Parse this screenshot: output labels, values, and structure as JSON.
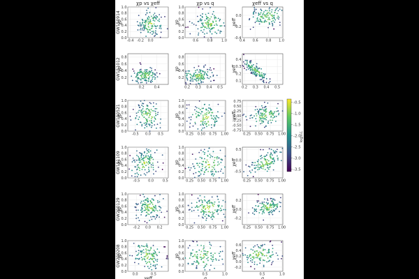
{
  "chart_data": {
    "type": "scatter",
    "title": "",
    "columns": [
      {
        "title": "χp vs χeff",
        "x_quantity": "chi_eff",
        "y_quantity": "chi_p"
      },
      {
        "title": "χp vs q",
        "x_quantity": "q",
        "y_quantity": "chi_p"
      },
      {
        "title": "χeff vs q",
        "x_quantity": "q",
        "y_quantity": "chi_eff"
      }
    ],
    "rows": [
      {
        "event": "GW150914",
        "panels": [
          {
            "xlabel": "",
            "ylabel": "χp",
            "xlim": [
              -0.45,
              0.35
            ],
            "ylim": [
              0.0,
              1.0
            ],
            "xticks": [
              "-0.4",
              "-0.2",
              "0.0"
            ],
            "yticks": [
              "0.0",
              "0.2",
              "0.4",
              "0.6",
              "0.8",
              "1.0"
            ],
            "cloud": {
              "cx": 0.0,
              "cy": 0.45,
              "sx": 0.12,
              "sy": 0.22,
              "rho": 0.0
            }
          },
          {
            "xlabel": "",
            "ylabel": "χp",
            "xlim": [
              0.45,
              1.02
            ],
            "ylim": [
              0.0,
              1.0
            ],
            "xticks": [
              "0.6",
              "0.8",
              "1.0"
            ],
            "yticks": [
              "0.0",
              "0.2",
              "0.4",
              "0.6",
              "0.8",
              "1.0"
            ],
            "cloud": {
              "cx": 0.8,
              "cy": 0.45,
              "sx": 0.12,
              "sy": 0.22,
              "rho": 0.0
            }
          },
          {
            "xlabel": "",
            "ylabel": "χeff",
            "xlim": [
              0.4,
              1.02
            ],
            "ylim": [
              -0.4,
              0.15
            ],
            "xticks": [
              "0.4",
              "0.6",
              "0.8",
              "1.0"
            ],
            "yticks": [
              "-0.4",
              "-0.2",
              "0.0"
            ],
            "cloud": {
              "cx": 0.78,
              "cy": -0.02,
              "sx": 0.13,
              "sy": 0.1,
              "rho": 0.1
            }
          }
        ]
      },
      {
        "event": "GW151012",
        "panels": [
          {
            "xlabel": "",
            "ylabel": "χp",
            "xlim": [
              0.02,
              0.55
            ],
            "ylim": [
              0.0,
              0.9
            ],
            "xticks": [
              "0.2",
              "0.4"
            ],
            "yticks": [
              "0.2",
              "0.4",
              "0.6",
              "0.8"
            ],
            "cloud": {
              "cx": 0.25,
              "cy": 0.25,
              "sx": 0.09,
              "sy": 0.12,
              "rho": 0.0
            }
          },
          {
            "xlabel": "",
            "ylabel": "χp",
            "xlim": [
              0.18,
              0.55
            ],
            "ylim": [
              0.0,
              0.9
            ],
            "xticks": [
              "0.2",
              "0.3",
              "0.4",
              "0.5"
            ],
            "yticks": [
              "0.2",
              "0.4",
              "0.6",
              "0.8"
            ],
            "cloud": {
              "cx": 0.3,
              "cy": 0.25,
              "sx": 0.07,
              "sy": 0.13,
              "rho": 0.0
            }
          },
          {
            "xlabel": "",
            "ylabel": "χeff",
            "xlim": [
              0.18,
              0.55
            ],
            "ylim": [
              0.05,
              0.48
            ],
            "xticks": [
              "0.2",
              "0.3",
              "0.4",
              "0.5"
            ],
            "yticks": [
              "0.1",
              "0.2",
              "0.3",
              "0.4"
            ],
            "cloud": {
              "cx": 0.3,
              "cy": 0.25,
              "sx": 0.06,
              "sy": 0.08,
              "rho": -0.85
            }
          }
        ]
      },
      {
        "event": "GW190521",
        "panels": [
          {
            "xlabel": "",
            "ylabel": "χp",
            "xlim": [
              -0.8,
              0.8
            ],
            "ylim": [
              0.0,
              1.0
            ],
            "xticks": [
              "-0.5",
              "0.0",
              "0.5"
            ],
            "yticks": [
              "0.0",
              "0.2",
              "0.4",
              "0.6",
              "0.8",
              "1.0"
            ],
            "cloud": {
              "cx": 0.0,
              "cy": 0.5,
              "sx": 0.3,
              "sy": 0.25,
              "rho": 0.0
            }
          },
          {
            "xlabel": "",
            "ylabel": "χp",
            "xlim": [
              0.15,
              1.02
            ],
            "ylim": [
              0.0,
              1.0
            ],
            "xticks": [
              "0.25",
              "0.50",
              "0.75",
              "1.00"
            ],
            "yticks": [
              "0.0",
              "0.2",
              "0.4",
              "0.6",
              "0.8",
              "1.0"
            ],
            "cloud": {
              "cx": 0.6,
              "cy": 0.45,
              "sx": 0.2,
              "sy": 0.25,
              "rho": 0.0
            }
          },
          {
            "xlabel": "",
            "ylabel": "χeff",
            "xlim": [
              0.15,
              1.02
            ],
            "ylim": [
              -0.8,
              0.8
            ],
            "xticks": [
              "0.25",
              "0.50",
              "0.75",
              "1.00"
            ],
            "yticks": [
              "-0.75",
              "-0.50",
              "-0.25",
              "0.00",
              "0.25",
              "0.50",
              "0.75"
            ],
            "cloud": {
              "cx": 0.65,
              "cy": 0.0,
              "sx": 0.2,
              "sy": 0.28,
              "rho": 0.3
            }
          }
        ]
      },
      {
        "event": "GW191109",
        "panels": [
          {
            "xlabel": "",
            "ylabel": "χp",
            "xlim": [
              -0.8,
              0.6
            ],
            "ylim": [
              0.0,
              1.0
            ],
            "xticks": [
              "-0.5",
              "0.0",
              "0.5"
            ],
            "yticks": [
              "0.0",
              "0.2",
              "0.4",
              "0.6",
              "0.8",
              "1.0"
            ],
            "cloud": {
              "cx": -0.2,
              "cy": 0.5,
              "sx": 0.25,
              "sy": 0.25,
              "rho": 0.3
            }
          },
          {
            "xlabel": "",
            "ylabel": "χp",
            "xlim": [
              0.15,
              1.02
            ],
            "ylim": [
              0.0,
              1.0
            ],
            "xticks": [
              "0.25",
              "0.50",
              "0.75",
              "1.00"
            ],
            "yticks": [
              "0.0",
              "0.2",
              "0.4",
              "0.6",
              "0.8",
              "1.0"
            ],
            "cloud": {
              "cx": 0.65,
              "cy": 0.45,
              "sx": 0.2,
              "sy": 0.25,
              "rho": 0.1
            }
          },
          {
            "xlabel": "",
            "ylabel": "χeff",
            "xlim": [
              0.15,
              1.02
            ],
            "ylim": [
              -0.8,
              0.6
            ],
            "xticks": [
              "0.25",
              "0.50",
              "0.75",
              "1.00"
            ],
            "yticks": [
              "-0.5",
              "0.0",
              "0.5"
            ],
            "cloud": {
              "cx": 0.65,
              "cy": -0.1,
              "sx": 0.2,
              "sy": 0.3,
              "rho": 0.6
            }
          }
        ]
      },
      {
        "event": "GW200129",
        "panels": [
          {
            "xlabel": "",
            "ylabel": "χp",
            "xlim": [
              -0.35,
              0.35
            ],
            "ylim": [
              0.0,
              1.0
            ],
            "xticks": [
              "-0.2",
              "0.0",
              "0.2"
            ],
            "yticks": [
              "0.0",
              "0.2",
              "0.4",
              "0.6",
              "0.8",
              "1.0"
            ],
            "cloud": {
              "cx": 0.02,
              "cy": 0.55,
              "sx": 0.12,
              "sy": 0.22,
              "rho": 0.0
            }
          },
          {
            "xlabel": "",
            "ylabel": "χp",
            "xlim": [
              0.15,
              1.02
            ],
            "ylim": [
              0.0,
              1.0
            ],
            "xticks": [
              "0.25",
              "0.50",
              "0.75",
              "1.00"
            ],
            "yticks": [
              "0.0",
              "0.2",
              "0.4",
              "0.6",
              "0.8",
              "1.0"
            ],
            "cloud": {
              "cx": 0.65,
              "cy": 0.55,
              "sx": 0.2,
              "sy": 0.22,
              "rho": 0.0
            }
          },
          {
            "xlabel": "",
            "ylabel": "χeff",
            "xlim": [
              0.15,
              1.02
            ],
            "ylim": [
              -0.35,
              0.35
            ],
            "xticks": [
              "0.25",
              "0.50",
              "0.75",
              "1.00"
            ],
            "yticks": [
              "-0.2",
              "0.0",
              "0.2"
            ],
            "cloud": {
              "cx": 0.7,
              "cy": 0.05,
              "sx": 0.18,
              "sy": 0.1,
              "rho": 0.4
            }
          }
        ]
      },
      {
        "event": "GW200208",
        "panels": [
          {
            "xlabel": "χeff",
            "ylabel": "χp",
            "xlim": [
              -0.2,
              0.9
            ],
            "ylim": [
              0.0,
              1.0
            ],
            "xticks": [
              "0.0",
              "0.5"
            ],
            "yticks": [
              "0.0",
              "0.2",
              "0.4",
              "0.6",
              "0.8",
              "1.0"
            ],
            "cloud": {
              "cx": 0.35,
              "cy": 0.5,
              "sx": 0.22,
              "sy": 0.25,
              "rho": -0.3
            }
          },
          {
            "xlabel": "q",
            "ylabel": "χp",
            "xlim": [
              0.0,
              1.02
            ],
            "ylim": [
              0.0,
              1.0
            ],
            "xticks": [
              "0.5",
              "1.0"
            ],
            "yticks": [
              "0.0",
              "0.2",
              "0.4",
              "0.6",
              "0.8",
              "1.0"
            ],
            "cloud": {
              "cx": 0.45,
              "cy": 0.5,
              "sx": 0.28,
              "sy": 0.25,
              "rho": 0.0
            }
          },
          {
            "xlabel": "q",
            "ylabel": "χeff",
            "xlim": [
              0.0,
              1.02
            ],
            "ylim": [
              -0.35,
              0.75
            ],
            "xticks": [
              "0.5",
              "1.0"
            ],
            "yticks": [
              "-0.2",
              "0.0",
              "0.2",
              "0.4",
              "0.6"
            ],
            "cloud": {
              "cx": 0.45,
              "cy": 0.25,
              "sx": 0.28,
              "sy": 0.2,
              "rho": 0.0
            }
          }
        ]
      }
    ],
    "colorbar": {
      "label": "log₁₀ℒ",
      "range": [
        -3.6,
        -0.35
      ],
      "ticks": [
        "-0.5",
        "-1.0",
        "-1.5",
        "-2.0",
        "-2.5",
        "-3.0",
        "-3.5"
      ],
      "colormap": "viridis"
    },
    "grid": true,
    "legend": "none"
  }
}
